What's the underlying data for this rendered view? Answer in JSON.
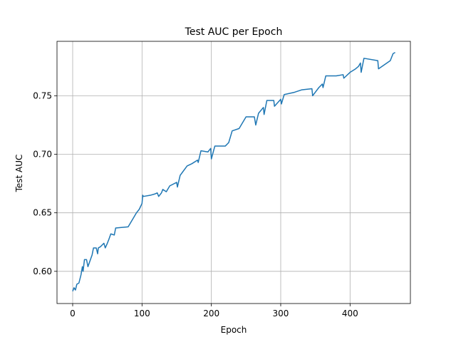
{
  "chart_data": {
    "type": "line",
    "title": "Test AUC per Epoch",
    "x_label": "Epoch",
    "y_label": "Test AUC",
    "x": [
      0,
      2,
      4,
      6,
      9,
      12,
      14,
      15,
      17,
      20,
      22,
      28,
      30,
      34,
      36,
      37,
      40,
      45,
      47,
      50,
      52,
      55,
      60,
      62,
      80,
      88,
      92,
      96,
      100,
      101,
      102,
      112,
      118,
      122,
      124,
      128,
      130,
      135,
      140,
      150,
      151,
      155,
      165,
      172,
      180,
      181,
      185,
      195,
      199,
      200,
      205,
      220,
      225,
      230,
      240,
      250,
      262,
      264,
      268,
      275,
      276,
      280,
      290,
      291,
      300,
      301,
      305,
      320,
      330,
      345,
      346,
      355,
      360,
      361,
      365,
      380,
      390,
      391,
      400,
      408,
      412,
      415,
      416,
      420,
      440,
      441,
      458,
      462,
      465
    ],
    "series": [
      {
        "name": "Test AUC",
        "color": "#1f77b4",
        "values": [
          0.583,
          0.586,
          0.584,
          0.589,
          0.59,
          0.597,
          0.604,
          0.6,
          0.61,
          0.61,
          0.604,
          0.614,
          0.62,
          0.62,
          0.615,
          0.62,
          0.621,
          0.624,
          0.62,
          0.624,
          0.627,
          0.632,
          0.631,
          0.637,
          0.638,
          0.646,
          0.65,
          0.653,
          0.658,
          0.665,
          0.664,
          0.665,
          0.666,
          0.667,
          0.664,
          0.667,
          0.67,
          0.668,
          0.673,
          0.676,
          0.672,
          0.682,
          0.69,
          0.692,
          0.695,
          0.693,
          0.703,
          0.702,
          0.705,
          0.696,
          0.707,
          0.707,
          0.71,
          0.72,
          0.722,
          0.732,
          0.732,
          0.725,
          0.735,
          0.74,
          0.734,
          0.746,
          0.746,
          0.741,
          0.747,
          0.743,
          0.751,
          0.753,
          0.755,
          0.756,
          0.75,
          0.757,
          0.76,
          0.757,
          0.767,
          0.767,
          0.768,
          0.765,
          0.77,
          0.773,
          0.775,
          0.778,
          0.77,
          0.782,
          0.78,
          0.773,
          0.78,
          0.786,
          0.787
        ]
      }
    ],
    "xlim": [
      -22.6,
      487
    ],
    "ylim": [
      0.5725,
      0.7965
    ],
    "xticks": [
      0,
      100,
      200,
      300,
      400
    ],
    "yticks": [
      {
        "value": 0.6,
        "label": "0.60"
      },
      {
        "value": 0.65,
        "label": "0.65"
      },
      {
        "value": 0.7,
        "label": "0.70"
      },
      {
        "value": 0.75,
        "label": "0.75"
      }
    ],
    "grid": true
  }
}
